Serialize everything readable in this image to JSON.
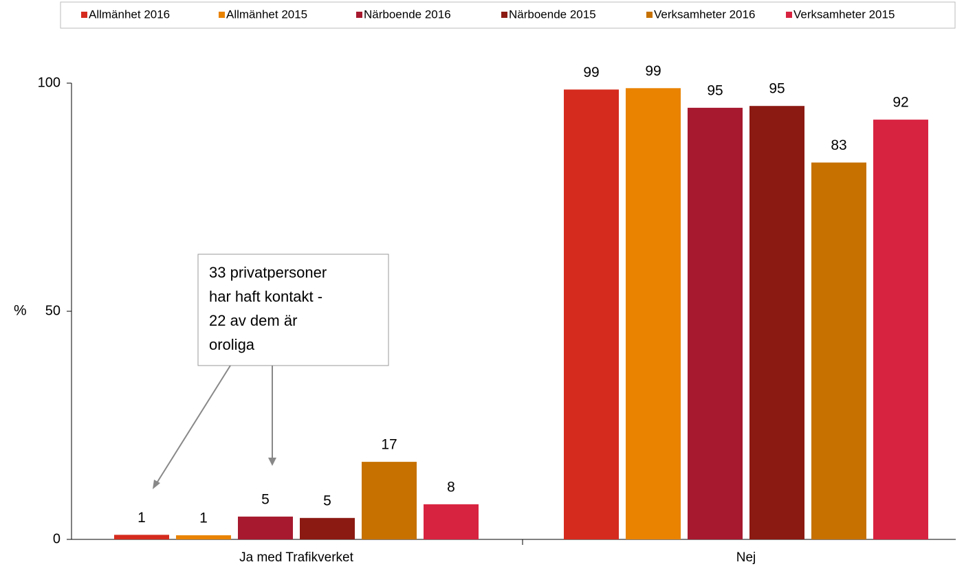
{
  "chart_data": {
    "type": "bar",
    "categories": [
      "Ja med Trafikverket",
      "Nej"
    ],
    "y_label": "%",
    "ylim": [
      0,
      100
    ],
    "yticks": [
      0,
      50,
      100
    ],
    "series": [
      {
        "name": "Allmänhet 2016",
        "color": "#d52b1e",
        "values": [
          1.0,
          98.6
        ],
        "value_labels": [
          "1",
          "99"
        ]
      },
      {
        "name": "Allmänhet 2015",
        "color": "#e98300",
        "values": [
          0.9,
          98.9
        ],
        "value_labels": [
          "1",
          "99"
        ]
      },
      {
        "name": "Närboende 2016",
        "color": "#a6192e",
        "values": [
          5.0,
          94.6
        ],
        "value_labels": [
          "5",
          "95"
        ]
      },
      {
        "name": "Närboende 2015",
        "color": "#8b1a13",
        "values": [
          4.7,
          95.0
        ],
        "value_labels": [
          "5",
          "95"
        ]
      },
      {
        "name": "Verksamheter 2016",
        "color": "#c67100",
        "values": [
          17.0,
          82.6
        ],
        "value_labels": [
          "17",
          "83"
        ]
      },
      {
        "name": "Verksamheter 2015",
        "color": "#d82340",
        "values": [
          7.7,
          92.0
        ],
        "value_labels": [
          "8",
          "92"
        ]
      }
    ],
    "annotation": [
      "33 privatpersoner",
      "har haft kontakt -",
      "22 av dem är",
      "oroliga"
    ]
  }
}
